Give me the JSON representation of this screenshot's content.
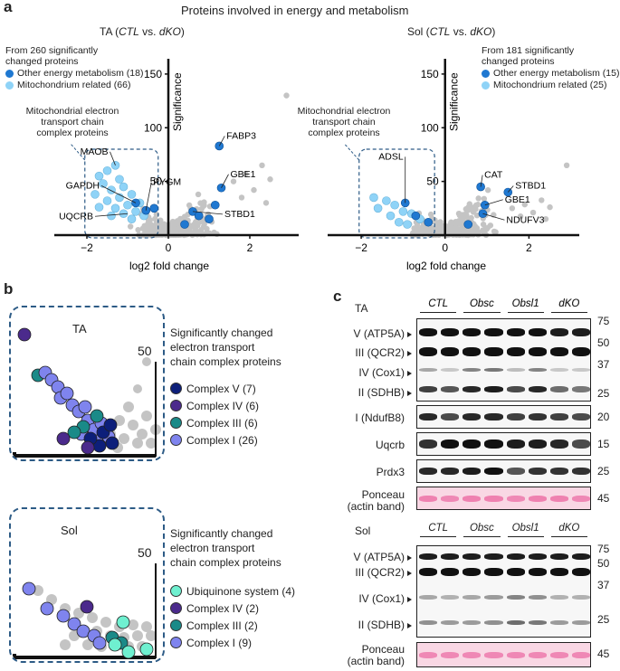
{
  "figure": {
    "title": "Proteins involved in energy and metabolism",
    "panel_a": {
      "letter": "a",
      "ta": {
        "title_prefix": "TA (",
        "title_ctl": "CTL",
        "title_vs": " vs. ",
        "title_dko": "dKO",
        "title_suffix": ")",
        "legend_header_1": "From 260 significantly",
        "legend_header_2": "changed proteins",
        "legend_other": "Other energy metabolism (18)",
        "legend_mito": "Mitochondrium related (66)",
        "etc_label_1": "Mitochondrial electron",
        "etc_label_2": "transport chain",
        "etc_label_3": "complex proteins",
        "xlabel": "log2 fold change",
        "ylabel": "Significance",
        "gene_labels": [
          "MAOB",
          "PYGM",
          "GAPDH",
          "UQCRB",
          "FABP3",
          "GBE1",
          "STBD1"
        ]
      },
      "sol": {
        "title_prefix": "Sol (",
        "title_ctl": "CTL",
        "title_vs": " vs. ",
        "title_dko": "dKO",
        "title_suffix": ")",
        "legend_header_1": "From 181 significantly",
        "legend_header_2": "changed proteins",
        "legend_other": "Other energy metabolism (15)",
        "legend_mito": "Mitochondrium related (25)",
        "etc_label_1": "Mitochondrial electron",
        "etc_label_2": "transport chain",
        "etc_label_3": "complex proteins",
        "xlabel": "log2 fold change",
        "ylabel": "Significance",
        "gene_labels": [
          "ADSL",
          "CAT",
          "STBD1",
          "GBE1",
          "NDUFV3"
        ]
      }
    },
    "panel_b": {
      "letter": "b",
      "ta": {
        "inset_label": "TA",
        "tick": "50",
        "legend_title_1": "Significantly changed",
        "legend_title_2": "electron transport",
        "legend_title_3": "chain complex proteins",
        "items": [
          {
            "label": "Complex V (7)",
            "color": "#0d1f7a"
          },
          {
            "label": "Complex IV (6)",
            "color": "#4b2a8c"
          },
          {
            "label": "Complex III (6)",
            "color": "#1a8a88"
          },
          {
            "label": "Complex I (26)",
            "color": "#7f84ee"
          }
        ]
      },
      "sol": {
        "inset_label": "Sol",
        "tick": "50",
        "legend_title_1": "Significantly changed",
        "legend_title_2": "electron transport",
        "legend_title_3": "chain complex proteins",
        "items": [
          {
            "label": "Ubiquinone system (4)",
            "color": "#6ff0d0"
          },
          {
            "label": "Complex IV (2)",
            "color": "#4b2a8c"
          },
          {
            "label": "Complex III (2)",
            "color": "#1a8a88"
          },
          {
            "label": "Complex I (9)",
            "color": "#7f84ee"
          }
        ]
      }
    },
    "panel_c": {
      "letter": "c",
      "ta": {
        "tissue": "TA",
        "groups": [
          "CTL",
          "Obsc",
          "Obsl1",
          "dKO"
        ],
        "rows": [
          "V (ATP5A)",
          "III (QCR2)",
          "IV (Cox1)",
          "II (SDHB)",
          "I (NdufB8)",
          "Uqcrb",
          "Prdx3",
          "Ponceau",
          "(actin band)"
        ],
        "mw": [
          "75",
          "50",
          "37",
          "25",
          "20",
          "15",
          "25",
          "45"
        ]
      },
      "sol": {
        "tissue": "Sol",
        "groups": [
          "CTL",
          "Obsc",
          "Obsl1",
          "dKO"
        ],
        "rows": [
          "V (ATP5A)",
          "III (QCR2)",
          "IV (Cox1)",
          "II (SDHB)",
          "Ponceau",
          "(actin band)"
        ],
        "mw": [
          "75",
          "50",
          "37",
          "25",
          "45"
        ]
      }
    },
    "colors": {
      "other_energy": "#1f78d1",
      "mito": "#8fd3f7",
      "background_points": "#c4c4c4"
    }
  },
  "chart_data": [
    {
      "type": "scatter",
      "title": "TA (CTL vs. dKO)",
      "xlabel": "log2 fold change",
      "ylabel": "Significance",
      "xlim": [
        -2.8,
        3.2
      ],
      "ylim": [
        0,
        160
      ],
      "xticks": [
        -2,
        0,
        2
      ],
      "yticks": [
        50,
        100,
        150
      ],
      "series": [
        {
          "name": "Other energy metabolism (18)",
          "points": [
            [
              1.25,
              83
            ],
            [
              1.3,
              44
            ],
            [
              1.15,
              28
            ],
            [
              0.6,
              22
            ],
            [
              0.75,
              18
            ],
            [
              -0.55,
              23
            ],
            [
              -0.8,
              30
            ],
            [
              -0.35,
              25
            ],
            [
              1.0,
              15
            ],
            [
              0.4,
              10
            ]
          ]
        },
        {
          "name": "Mitochondrium related (66)",
          "points": [
            [
              -1.3,
              65
            ],
            [
              -1.5,
              60
            ],
            [
              -1.7,
              55
            ],
            [
              -1.2,
              52
            ],
            [
              -1.6,
              48
            ],
            [
              -1.1,
              45
            ],
            [
              -1.4,
              42
            ],
            [
              -1.8,
              38
            ],
            [
              -0.9,
              38
            ],
            [
              -1.2,
              35
            ],
            [
              -1.5,
              32
            ],
            [
              -0.7,
              30
            ],
            [
              -1.0,
              28
            ],
            [
              -1.3,
              25
            ],
            [
              -1.7,
              26
            ],
            [
              -0.8,
              22
            ],
            [
              -1.1,
              20
            ],
            [
              -0.6,
              18
            ],
            [
              -1.4,
              18
            ],
            [
              -0.9,
              15
            ]
          ]
        }
      ],
      "labels": [
        {
          "text": "MAOB",
          "x": -1.3,
          "y": 65
        },
        {
          "text": "PYGM",
          "x": -0.55,
          "y": 23
        },
        {
          "text": "GAPDH",
          "x": -0.8,
          "y": 30
        },
        {
          "text": "UQCRB",
          "x": -1.0,
          "y": 20
        },
        {
          "text": "FABP3",
          "x": 1.25,
          "y": 83
        },
        {
          "text": "GBE1",
          "x": 1.3,
          "y": 44
        },
        {
          "text": "STBD1",
          "x": 0.6,
          "y": 22
        }
      ]
    },
    {
      "type": "scatter",
      "title": "Sol (CTL vs. dKO)",
      "xlabel": "log2 fold change",
      "ylabel": "Significance",
      "xlim": [
        -2.8,
        3.2
      ],
      "ylim": [
        0,
        160
      ],
      "xticks": [
        -2,
        0,
        2
      ],
      "yticks": [
        50,
        100,
        150
      ],
      "series": [
        {
          "name": "Other energy metabolism (15)",
          "points": [
            [
              0.85,
              45
            ],
            [
              1.5,
              40
            ],
            [
              0.95,
              28
            ],
            [
              0.9,
              20
            ],
            [
              -0.95,
              30
            ],
            [
              -0.7,
              18
            ],
            [
              -0.4,
              12
            ],
            [
              0.55,
              10
            ]
          ]
        },
        {
          "name": "Mitochondrium related (25)",
          "points": [
            [
              -1.7,
              35
            ],
            [
              -1.4,
              32
            ],
            [
              -1.2,
              28
            ],
            [
              -1.6,
              25
            ],
            [
              -1.0,
              22
            ],
            [
              -0.8,
              20
            ],
            [
              -1.3,
              18
            ],
            [
              -0.6,
              15
            ],
            [
              -1.1,
              12
            ],
            [
              -0.9,
              10
            ]
          ]
        }
      ],
      "labels": [
        {
          "text": "ADSL",
          "x": -0.95,
          "y": 30
        },
        {
          "text": "CAT",
          "x": 0.85,
          "y": 45
        },
        {
          "text": "STBD1",
          "x": 1.5,
          "y": 40
        },
        {
          "text": "GBE1",
          "x": 0.95,
          "y": 28
        },
        {
          "text": "NDUFV3",
          "x": 0.9,
          "y": 20
        }
      ]
    }
  ]
}
